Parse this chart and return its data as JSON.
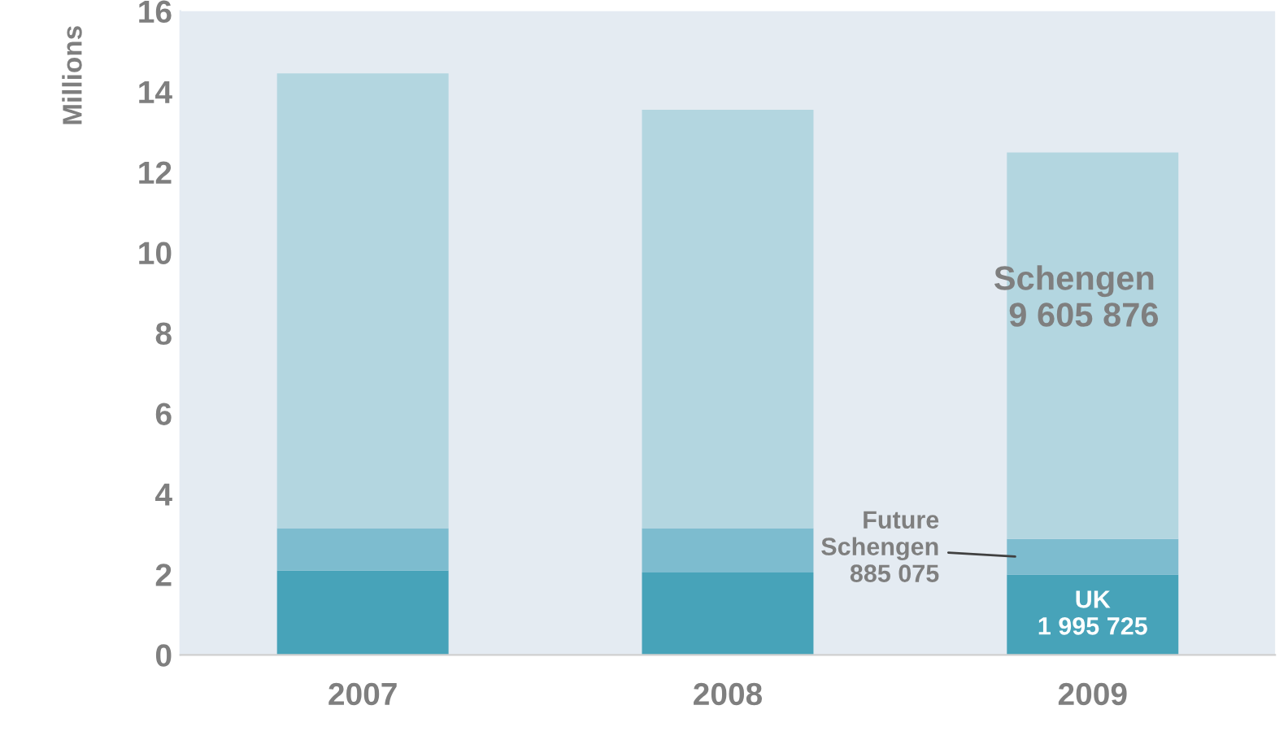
{
  "chart_data": {
    "type": "bar",
    "stacked": true,
    "categories": [
      "2007",
      "2008",
      "2009"
    ],
    "ylabel": "Millions",
    "ylim": [
      0,
      16
    ],
    "yticks": [
      0,
      2,
      4,
      6,
      8,
      10,
      12,
      14,
      16
    ],
    "grid": false,
    "legend": false,
    "series": [
      {
        "name": "UK",
        "color": "#47a3b9",
        "values": [
          2.1,
          2.05,
          1.995725
        ]
      },
      {
        "name": "Future Schengen",
        "color": "#7dbccf",
        "values": [
          1.05,
          1.1,
          0.885075
        ]
      },
      {
        "name": "Schengen",
        "color": "#b3d6e0",
        "values": [
          11.3,
          10.4,
          9.605876
        ]
      }
    ],
    "annotations": [
      "1 995 725",
      "885 075",
      "9 605 876"
    ]
  }
}
